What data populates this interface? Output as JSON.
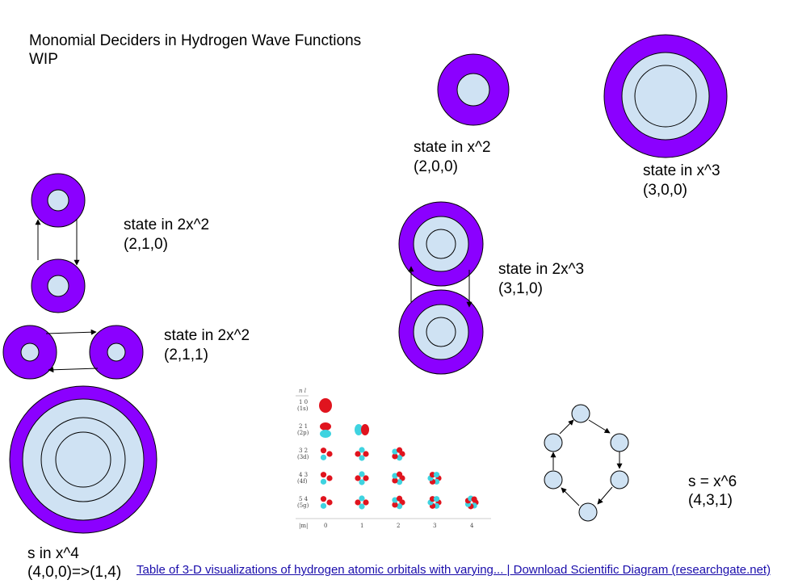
{
  "title": {
    "line1": "Monomial Deciders in Hydrogen Wave Functions",
    "line2": "WIP"
  },
  "labels": {
    "x2": {
      "state": "state in x^2",
      "tuple": "(2,0,0)"
    },
    "x3": {
      "state": "state in x^3",
      "tuple": "(3,0,0)"
    },
    "2x2_210": {
      "state": "state in 2x^2",
      "tuple": "(2,1,0)"
    },
    "2x3_310": {
      "state": "state in 2x^3",
      "tuple": "(3,1,0)"
    },
    "2x2_211": {
      "state": "state in 2x^2",
      "tuple": "(2,1,1)"
    },
    "x4": {
      "state": "s in x^4",
      "tuple": "(4,0,0)=>(1,4)"
    },
    "x6": {
      "state": "s = x^6",
      "tuple": "(4,3,1)"
    }
  },
  "orbital_table": {
    "header": "n  l",
    "rows": [
      {
        "nl": "1  0",
        "name": "(1s)"
      },
      {
        "nl": "2  1",
        "name": "(2p)"
      },
      {
        "nl": "3  2",
        "name": "(3d)"
      },
      {
        "nl": "4  3",
        "name": "(4f)"
      },
      {
        "nl": "5  4",
        "name": "(5g)"
      }
    ],
    "m_label": "|m|",
    "m_values": [
      "0",
      "1",
      "2",
      "3",
      "4"
    ]
  },
  "link_text": "Table of 3-D visualizations of hydrogen atomic orbitals with varying... | Download Scientific Diagram (researchgate.net)",
  "colors": {
    "outer": "#8b00ff",
    "inner": "#cfe2f3",
    "node": "#cfe2f3",
    "lobe_red": "#e0141e",
    "lobe_cyan": "#3fd3e0"
  }
}
